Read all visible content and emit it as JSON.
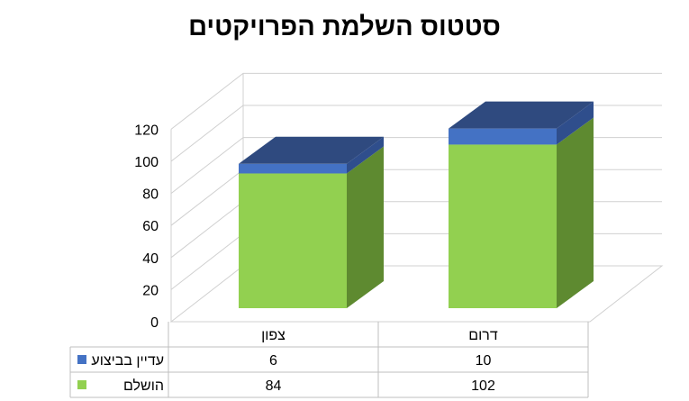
{
  "chart_data": {
    "type": "bar",
    "stacked": true,
    "three_d": true,
    "title": "סטטוס השלמת הפרויקטים",
    "categories": [
      "צפון",
      "דרום"
    ],
    "series": [
      {
        "name": "הושלם",
        "values": [
          84,
          102
        ],
        "color": "#92D050",
        "side_color": "#5E8A30",
        "top_color": "#7DB545"
      },
      {
        "name": "עדיין בביצוע",
        "values": [
          6,
          10
        ],
        "color": "#4472C4",
        "side_color": "#2F4E8C",
        "top_color": "#2F4A7F"
      }
    ],
    "ylim": [
      0,
      120
    ],
    "yticks": [
      "0",
      "20",
      "40",
      "60",
      "80",
      "100",
      "120"
    ],
    "grid": true,
    "data_table": true,
    "legend_placement": "data-table-left"
  }
}
